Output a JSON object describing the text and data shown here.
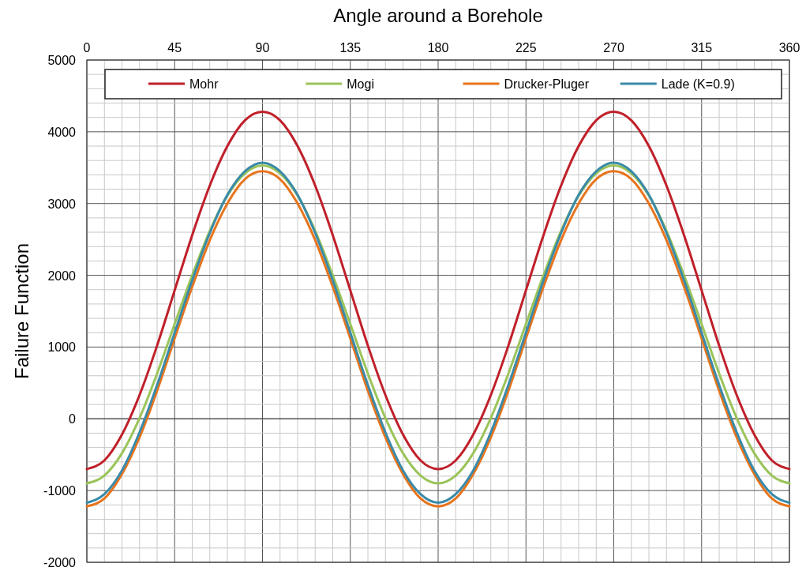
{
  "chart_data": {
    "type": "line",
    "xlabel": "Angle around a Borehole",
    "ylabel": "Failure Function",
    "x": [
      0,
      9,
      18,
      27,
      36,
      45,
      54,
      63,
      72,
      81,
      90,
      99,
      108,
      117,
      126,
      135,
      144,
      153,
      162,
      171,
      180,
      189,
      198,
      207,
      216,
      225,
      234,
      243,
      252,
      261,
      270,
      279,
      288,
      297,
      306,
      315,
      324,
      333,
      342,
      351,
      360
    ],
    "xlim": [
      0,
      360
    ],
    "xticks": [
      0,
      {
        "value": 9,
        "label": null
      },
      {
        "value": 18,
        "label": null
      },
      {
        "value": 27,
        "label": null
      },
      {
        "value": 36,
        "label": null
      },
      45,
      {
        "value": 54,
        "label": null
      },
      {
        "value": 63,
        "label": null
      },
      {
        "value": 72,
        "label": null
      },
      {
        "value": 81,
        "label": null
      },
      90,
      {
        "value": 99,
        "label": null
      },
      {
        "value": 108,
        "label": null
      },
      {
        "value": 117,
        "label": null
      },
      {
        "value": 126,
        "label": null
      },
      135,
      {
        "value": 144,
        "label": null
      },
      {
        "value": 153,
        "label": null
      },
      {
        "value": 162,
        "label": null
      },
      {
        "value": 171,
        "label": null
      },
      180,
      {
        "value": 189,
        "label": null
      },
      {
        "value": 198,
        "label": null
      },
      {
        "value": 207,
        "label": null
      },
      {
        "value": 216,
        "label": null
      },
      225,
      {
        "value": 234,
        "label": null
      },
      {
        "value": 243,
        "label": null
      },
      {
        "value": 252,
        "label": null
      },
      {
        "value": 261,
        "label": null
      },
      270,
      {
        "value": 279,
        "label": null
      },
      {
        "value": 288,
        "label": null
      },
      {
        "value": 297,
        "label": null
      },
      {
        "value": 306,
        "label": null
      },
      315,
      {
        "value": 324,
        "label": null
      },
      {
        "value": 333,
        "label": null
      },
      {
        "value": 342,
        "label": null
      },
      {
        "value": 351,
        "label": null
      },
      360
    ],
    "ylim": [
      -2000,
      5000
    ],
    "yticks": [
      -2000,
      {
        "value": -1800,
        "label": null
      },
      {
        "value": -1600,
        "label": null
      },
      {
        "value": -1400,
        "label": null
      },
      {
        "value": -1200,
        "label": null
      },
      -1000,
      {
        "value": -800,
        "label": null
      },
      {
        "value": -600,
        "label": null
      },
      {
        "value": -400,
        "label": null
      },
      {
        "value": -200,
        "label": null
      },
      0,
      {
        "value": 200,
        "label": null
      },
      {
        "value": 400,
        "label": null
      },
      {
        "value": 600,
        "label": null
      },
      {
        "value": 800,
        "label": null
      },
      1000,
      {
        "value": 1200,
        "label": null
      },
      {
        "value": 1400,
        "label": null
      },
      {
        "value": 1600,
        "label": null
      },
      {
        "value": 1800,
        "label": null
      },
      2000,
      {
        "value": 2200,
        "label": null
      },
      {
        "value": 2400,
        "label": null
      },
      {
        "value": 2600,
        "label": null
      },
      {
        "value": 2800,
        "label": null
      },
      3000,
      {
        "value": 3200,
        "label": null
      },
      {
        "value": 3400,
        "label": null
      },
      {
        "value": 3600,
        "label": null
      },
      {
        "value": 3800,
        "label": null
      },
      4000,
      {
        "value": 4200,
        "label": null
      },
      {
        "value": 4400,
        "label": null
      },
      {
        "value": 4600,
        "label": null
      },
      {
        "value": 4800,
        "label": null
      },
      5000
    ],
    "grid": true,
    "legend": "top",
    "marker": "none",
    "line_style": "solid",
    "series": [
      {
        "name": "Mohr",
        "color": "#c0202a",
        "values": [
          -700,
          -580,
          -220,
          330,
          1020,
          1790,
          2560,
          3250,
          3800,
          4160,
          4280,
          4160,
          3800,
          3250,
          2560,
          1790,
          1020,
          330,
          -220,
          -580,
          -700,
          -580,
          -220,
          330,
          1020,
          1790,
          2560,
          3250,
          3800,
          4160,
          4280,
          4160,
          3800,
          3250,
          2560,
          1790,
          1020,
          330,
          -220,
          -580,
          -700
        ]
      },
      {
        "name": "Mogi",
        "color": "#9bc45a",
        "values": [
          -900,
          -790,
          -480,
          10,
          630,
          1320,
          2000,
          2620,
          3110,
          3420,
          3530,
          3420,
          3110,
          2620,
          2000,
          1320,
          630,
          10,
          -480,
          -790,
          -900,
          -790,
          -480,
          10,
          630,
          1320,
          2000,
          2620,
          3110,
          3420,
          3530,
          3420,
          3110,
          2620,
          2000,
          1320,
          630,
          10,
          -480,
          -790,
          -900
        ]
      },
      {
        "name": "Drucker-Pluger",
        "color": "#e8741c",
        "values": [
          -1220,
          -1110,
          -770,
          -260,
          390,
          1120,
          1840,
          2490,
          3000,
          3340,
          3450,
          3340,
          3000,
          2490,
          1840,
          1120,
          390,
          -260,
          -770,
          -1110,
          -1220,
          -1110,
          -770,
          -260,
          390,
          1120,
          1840,
          2490,
          3000,
          3340,
          3450,
          3340,
          3000,
          2490,
          1840,
          1120,
          390,
          -260,
          -770,
          -1110,
          -1220
        ]
      },
      {
        "name": "Lade (K=0.9)",
        "color": "#3a8aa8",
        "values": [
          -1170,
          -1050,
          -720,
          -190,
          470,
          1200,
          1930,
          2590,
          3120,
          3450,
          3570,
          3450,
          3120,
          2590,
          1930,
          1200,
          470,
          -190,
          -720,
          -1050,
          -1170,
          -1050,
          -720,
          -190,
          470,
          1200,
          1930,
          2590,
          3120,
          3450,
          3570,
          3450,
          3120,
          2590,
          1930,
          1200,
          470,
          -190,
          -720,
          -1050,
          -1170
        ]
      }
    ]
  }
}
